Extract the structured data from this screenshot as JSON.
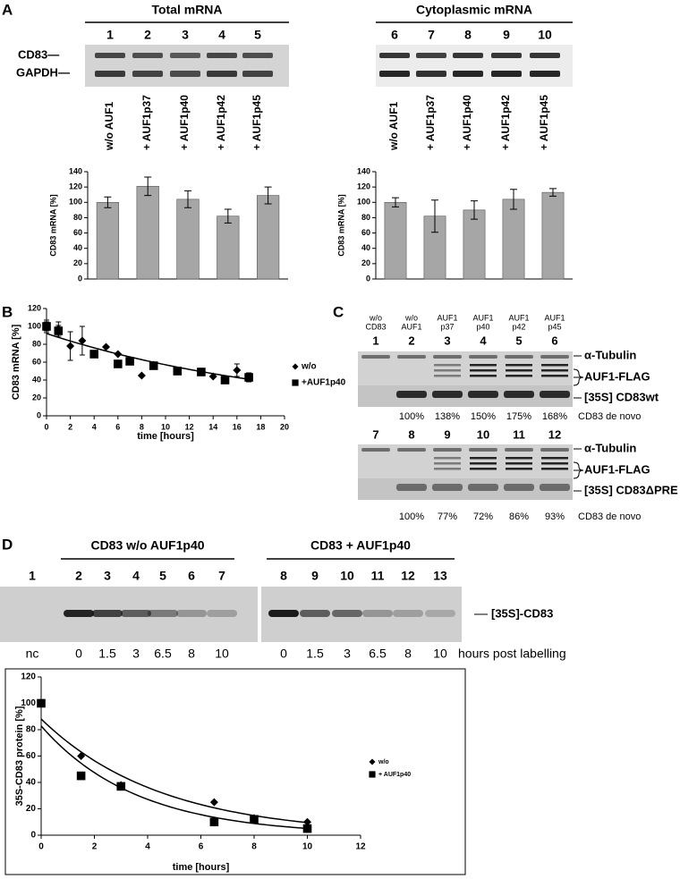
{
  "panel_labels": [
    "A",
    "B",
    "C",
    "D"
  ],
  "panel_a": {
    "gel_labels": [
      "CD83—",
      "GAPDH—"
    ],
    "total": {
      "title": "Total mRNA",
      "lanes": [
        "1",
        "2",
        "3",
        "4",
        "5"
      ],
      "conditions": [
        "w/o AUF1",
        "+ AUF1p37",
        "+ AUF1p40",
        "+ AUF1p42",
        "+ AUF1p45"
      ]
    },
    "cytoplasmic": {
      "title": "Cytoplasmic mRNA",
      "lanes": [
        "6",
        "7",
        "8",
        "9",
        "10"
      ],
      "conditions": [
        "w/o AUF1",
        "+ AUF1p37",
        "+ AUF1p40",
        "+ AUF1p42",
        "+ AUF1p45"
      ]
    }
  },
  "panel_c": {
    "headers": [
      [
        "w/o",
        "CD83"
      ],
      [
        "w/o",
        "AUF1"
      ],
      [
        "AUF1",
        "p37"
      ],
      [
        "AUF1",
        "p40"
      ],
      [
        "AUF1",
        "p42"
      ],
      [
        "AUF1",
        "p45"
      ]
    ],
    "blots": [
      {
        "lanes": [
          "1",
          "2",
          "3",
          "4",
          "5",
          "6"
        ],
        "labels": [
          "α-Tubulin",
          "AUF1-FLAG",
          "[35S] CD83wt"
        ],
        "percentages": [
          "100%",
          "138%",
          "150%",
          "175%",
          "168%"
        ],
        "percent_label": "CD83 de novo"
      },
      {
        "lanes": [
          "7",
          "8",
          "9",
          "10",
          "11",
          "12"
        ],
        "labels": [
          "α-Tubulin",
          "AUF1-FLAG",
          "[35S] CD83ΔPRE"
        ],
        "percentages": [
          "100%",
          "77%",
          "72%",
          "86%",
          "93%"
        ],
        "percent_label": "CD83 de novo"
      }
    ]
  },
  "panel_d": {
    "groups": [
      "CD83 w/o AUF1p40",
      "CD83 + AUF1p40"
    ],
    "lanes": [
      "1",
      "2",
      "3",
      "4",
      "5",
      "6",
      "7",
      "8",
      "9",
      "10",
      "11",
      "12",
      "13"
    ],
    "times": [
      "nc",
      "0",
      "1.5",
      "3",
      "6.5",
      "8",
      "10",
      "0",
      "1.5",
      "3",
      "6.5",
      "8",
      "10"
    ],
    "time_label": "hours post labelling",
    "band_label": "[35S]-CD83"
  },
  "chart_data": [
    {
      "type": "bar",
      "ylabel": "CD83 mRNA [%]",
      "color": "#a6a6a6",
      "values": [
        100,
        121,
        104,
        82,
        109
      ],
      "errors": [
        7,
        12,
        11,
        9,
        11
      ],
      "ylim": [
        0,
        140
      ],
      "yticks": [
        0,
        20,
        40,
        60,
        80,
        100,
        120,
        140
      ]
    },
    {
      "type": "bar",
      "ylabel": "CD83 mRNA [%]",
      "color": "#a6a6a6",
      "values": [
        100,
        82,
        90,
        104,
        113
      ],
      "errors": [
        6,
        21,
        12,
        13,
        5
      ],
      "ylim": [
        0,
        140
      ],
      "yticks": [
        0,
        20,
        40,
        60,
        80,
        100,
        120,
        140
      ]
    },
    {
      "type": "scatter",
      "xlabel": "time [hours]",
      "ylabel": "CD83 mRNA [%]",
      "xlim": [
        0,
        20
      ],
      "xticks": [
        0,
        2,
        4,
        6,
        8,
        10,
        12,
        14,
        16,
        18,
        20
      ],
      "ylim": [
        0,
        120
      ],
      "yticks": [
        0,
        20,
        40,
        60,
        80,
        100,
        120
      ],
      "series": [
        {
          "name": "w/o",
          "marker": "diamond",
          "color": "#000000",
          "trendline": "exponential",
          "x": [
            0,
            1,
            2,
            3,
            5,
            6,
            8,
            9,
            14,
            16,
            17
          ],
          "values": [
            100,
            97,
            78,
            84,
            77,
            69,
            45,
            57,
            44,
            51,
            43
          ],
          "errors": [
            7,
            8,
            16,
            16,
            null,
            null,
            null,
            null,
            null,
            7,
            5
          ]
        },
        {
          "name": "+AUF1p40",
          "marker": "square",
          "color": "#000000",
          "x": [
            0,
            1,
            4,
            6,
            7,
            9,
            11,
            13,
            15,
            17
          ],
          "values": [
            100,
            95,
            69,
            58,
            61,
            56,
            50,
            49,
            40,
            43
          ],
          "errors": [
            5,
            6,
            null,
            null,
            null,
            null,
            null,
            null,
            null,
            5
          ]
        }
      ]
    },
    {
      "type": "scatter",
      "xlabel": "time [hours]",
      "ylabel": "35S-CD83 protein [%]",
      "xlim": [
        0,
        12
      ],
      "xticks": [
        0,
        2,
        4,
        6,
        8,
        10,
        12
      ],
      "ylim": [
        0,
        120
      ],
      "yticks": [
        0,
        20,
        40,
        60,
        80,
        100,
        120
      ],
      "series": [
        {
          "name": "w/o",
          "marker": "diamond",
          "color": "#000000",
          "trendline": "exponential",
          "x": [
            0,
            1.5,
            3,
            6.5,
            8,
            10
          ],
          "values": [
            100,
            60,
            38,
            25,
            13,
            10
          ]
        },
        {
          "name": "+ AUF1p40",
          "marker": "square",
          "color": "#000000",
          "trendline": "exponential",
          "x": [
            0,
            1.5,
            3,
            6.5,
            8,
            10
          ],
          "values": [
            100,
            45,
            37,
            10,
            12,
            5
          ]
        }
      ]
    }
  ]
}
